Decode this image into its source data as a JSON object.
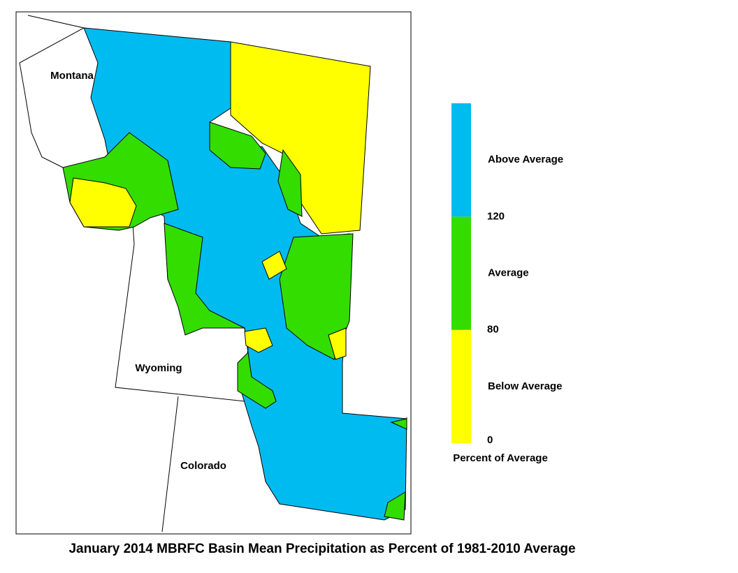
{
  "map": {
    "labels": [
      "Montana",
      "Wyoming",
      "Colorado"
    ]
  },
  "legend": {
    "bands": [
      {
        "label": "Below Average",
        "color": "#ffff00"
      },
      {
        "label": "Average",
        "color": "#33dd00"
      },
      {
        "label": "Above Average",
        "color": "#00bbf0"
      }
    ],
    "ticks": [
      0,
      80,
      120
    ],
    "title": "Percent of Average"
  },
  "caption": "January 2014 MBRFC Basin Mean Precipitation as Percent of 1981-2010 Average"
}
